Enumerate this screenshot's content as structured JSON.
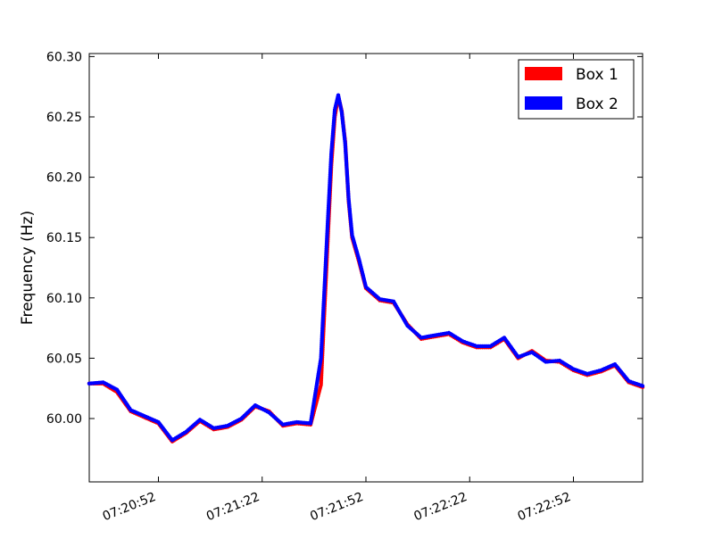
{
  "chart_data": {
    "type": "scatter",
    "title": "",
    "xlabel": "",
    "ylabel": "Frequency (Hz)",
    "xlim": [
      "07:20:32",
      "07:23:12"
    ],
    "ylim": [
      59.9475,
      60.3025
    ],
    "x_ticks": [
      "07:20:52",
      "07:21:22",
      "07:21:52",
      "07:22:22",
      "07:22:52"
    ],
    "y_ticks": [
      "60.00",
      "60.05",
      "60.10",
      "60.15",
      "60.20",
      "60.25",
      "60.30"
    ],
    "grid": false,
    "legend_placement": "top-right",
    "x_format": "hh:mm:ss",
    "series": [
      {
        "name": "Box 1",
        "color": "#ff0000",
        "x": [
          "07:20:32",
          "07:20:36",
          "07:20:40",
          "07:20:44",
          "07:20:48",
          "07:20:52",
          "07:20:56",
          "07:21:00",
          "07:21:04",
          "07:21:08",
          "07:21:12",
          "07:21:16",
          "07:21:20",
          "07:21:24",
          "07:21:28",
          "07:21:32",
          "07:21:36",
          "07:21:39",
          "07:21:41",
          "07:21:42",
          "07:21:43",
          "07:21:44",
          "07:21:45",
          "07:21:46",
          "07:21:47",
          "07:21:48",
          "07:21:50",
          "07:21:52",
          "07:21:56",
          "07:22:00",
          "07:22:04",
          "07:22:08",
          "07:22:12",
          "07:22:16",
          "07:22:20",
          "07:22:24",
          "07:22:28",
          "07:22:32",
          "07:22:36",
          "07:22:40",
          "07:22:44",
          "07:22:48",
          "07:22:52",
          "07:22:56",
          "07:23:00",
          "07:23:04",
          "07:23:08",
          "07:23:12"
        ],
        "y": [
          60.029,
          60.029,
          60.022,
          60.006,
          60.001,
          59.996,
          59.981,
          59.988,
          59.998,
          59.991,
          59.993,
          59.999,
          60.01,
          60.006,
          59.994,
          59.996,
          59.995,
          60.028,
          60.15,
          60.21,
          60.25,
          60.267,
          60.255,
          60.23,
          60.18,
          60.15,
          60.13,
          60.108,
          60.098,
          60.096,
          60.078,
          60.066,
          60.068,
          60.07,
          60.063,
          60.059,
          60.059,
          60.066,
          60.05,
          60.056,
          60.048,
          60.047,
          60.04,
          60.036,
          60.039,
          60.044,
          60.03,
          60.026
        ]
      },
      {
        "name": "Box 2",
        "color": "#0000ff",
        "x": [
          "07:20:32",
          "07:20:36",
          "07:20:40",
          "07:20:44",
          "07:20:48",
          "07:20:52",
          "07:20:56",
          "07:21:00",
          "07:21:04",
          "07:21:08",
          "07:21:12",
          "07:21:16",
          "07:21:20",
          "07:21:24",
          "07:21:28",
          "07:21:32",
          "07:21:36",
          "07:21:39",
          "07:21:41",
          "07:21:42",
          "07:21:43",
          "07:21:44",
          "07:21:45",
          "07:21:46",
          "07:21:47",
          "07:21:48",
          "07:21:50",
          "07:21:52",
          "07:21:56",
          "07:22:00",
          "07:22:04",
          "07:22:08",
          "07:22:12",
          "07:22:16",
          "07:22:20",
          "07:22:24",
          "07:22:28",
          "07:22:32",
          "07:22:36",
          "07:22:40",
          "07:22:44",
          "07:22:48",
          "07:22:52",
          "07:22:56",
          "07:23:00",
          "07:23:04",
          "07:23:08",
          "07:23:12"
        ],
        "y": [
          60.029,
          60.03,
          60.024,
          60.007,
          60.002,
          59.997,
          59.982,
          59.989,
          59.999,
          59.992,
          59.994,
          60.0,
          60.011,
          60.005,
          59.995,
          59.997,
          59.996,
          60.05,
          60.165,
          60.22,
          60.256,
          60.268,
          60.254,
          60.228,
          60.182,
          60.152,
          60.132,
          60.109,
          60.099,
          60.097,
          60.077,
          60.067,
          60.069,
          60.071,
          60.064,
          60.06,
          60.06,
          60.067,
          60.051,
          60.055,
          60.047,
          60.048,
          60.041,
          60.037,
          60.04,
          60.045,
          60.031,
          60.027
        ]
      }
    ]
  }
}
